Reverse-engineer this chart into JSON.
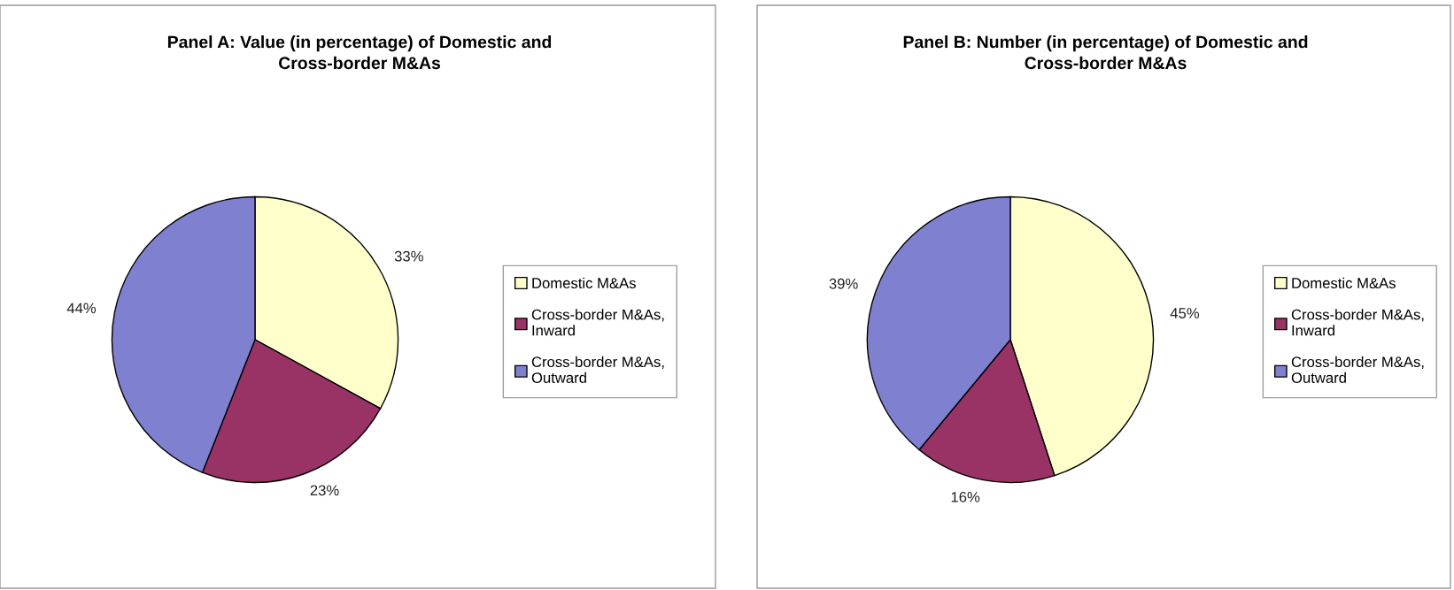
{
  "chart_data": [
    {
      "type": "pie",
      "title": "Panel A: Value (in percentage) of Domestic and\nCross-border M&As",
      "categories": [
        "Domestic M&As",
        "Cross-border M&As,\nInward",
        "Cross-border M&As,\nOutward"
      ],
      "values": [
        33,
        23,
        44
      ],
      "value_labels": [
        "33%",
        "23%",
        "44%"
      ],
      "colors": [
        "#ffffcc",
        "#993366",
        "#8080d0"
      ],
      "legend": "right"
    },
    {
      "type": "pie",
      "title": "Panel B: Number (in percentage) of Domestic and\nCross-border M&As",
      "categories": [
        "Domestic M&As",
        "Cross-border M&As,\nInward",
        "Cross-border M&As,\nOutward"
      ],
      "values": [
        45,
        16,
        39
      ],
      "value_labels": [
        "45%",
        "16%",
        "39%"
      ],
      "colors": [
        "#ffffcc",
        "#993366",
        "#8080d0"
      ],
      "legend": "right"
    }
  ]
}
